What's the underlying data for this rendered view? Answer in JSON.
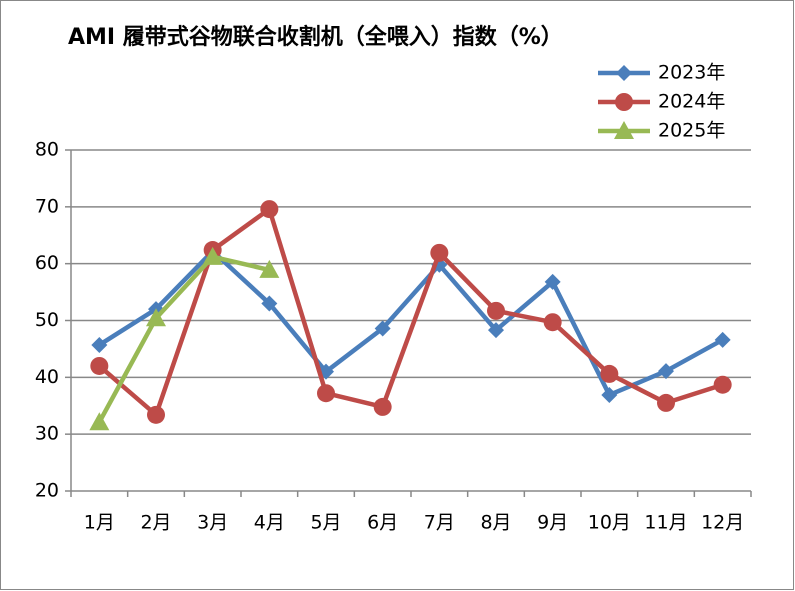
{
  "chart_data": {
    "type": "line",
    "title": "AMI 履带式谷物联合收割机（全喂入）指数（%）",
    "categories": [
      "1月",
      "2月",
      "3月",
      "4月",
      "5月",
      "6月",
      "7月",
      "8月",
      "9月",
      "10月",
      "11月",
      "12月"
    ],
    "series": [
      {
        "name": "2023年",
        "color": "#4a7ebb",
        "marker": "diamond",
        "values": [
          45.7,
          52,
          62.2,
          53,
          41,
          48.6,
          59.8,
          48.3,
          56.8,
          36.9,
          41.1,
          46.6
        ]
      },
      {
        "name": "2024年",
        "color": "#be4b48",
        "marker": "circle",
        "values": [
          42,
          33.4,
          62.4,
          69.6,
          37.2,
          34.8,
          61.9,
          51.7,
          49.7,
          40.6,
          35.5,
          38.7
        ]
      },
      {
        "name": "2025年",
        "color": "#98b954",
        "marker": "triangle",
        "values": [
          32.1,
          50.4,
          61.2,
          58.9,
          null,
          null,
          null,
          null,
          null,
          null,
          null,
          null
        ]
      }
    ],
    "ylim": [
      20,
      80
    ],
    "yticks": [
      20,
      30,
      40,
      50,
      60,
      70,
      80
    ],
    "grid": true,
    "legend": "top-right"
  }
}
